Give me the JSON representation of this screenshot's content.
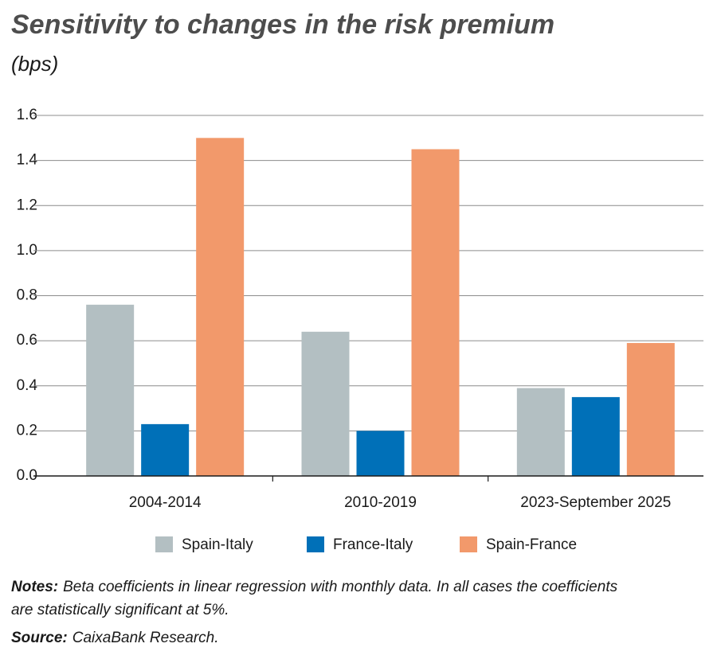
{
  "chart_data": {
    "type": "bar",
    "title": "Sensitivity to changes in the risk premium",
    "subtitle": "(bps)",
    "categories": [
      "2004-2014",
      "2010-2019",
      "2023-September 2025"
    ],
    "series": [
      {
        "name": "Spain-Italy",
        "color": "#b3bfc2",
        "values": [
          0.76,
          0.64,
          0.39
        ]
      },
      {
        "name": "France-Italy",
        "color": "#0070b8",
        "values": [
          0.23,
          0.2,
          0.35
        ]
      },
      {
        "name": "Spain-France",
        "color": "#f2996b",
        "values": [
          1.5,
          1.45,
          0.59
        ]
      }
    ],
    "ylim": [
      0,
      1.6
    ],
    "yticks": [
      {
        "value": 0,
        "label": "0.0"
      },
      0.2,
      0.4,
      0.6,
      0.8,
      {
        "value": 1,
        "label": "1.0"
      },
      1.2,
      1.4,
      1.6
    ],
    "grid": true
  },
  "notes": {
    "label": "Notes:",
    "lines": [
      "Beta coefficients in linear regression with monthly data. In all cases the coefficients",
      "are statistically significant at 5%."
    ]
  },
  "source": {
    "label": "Source:",
    "text": "CaixaBank Research."
  }
}
